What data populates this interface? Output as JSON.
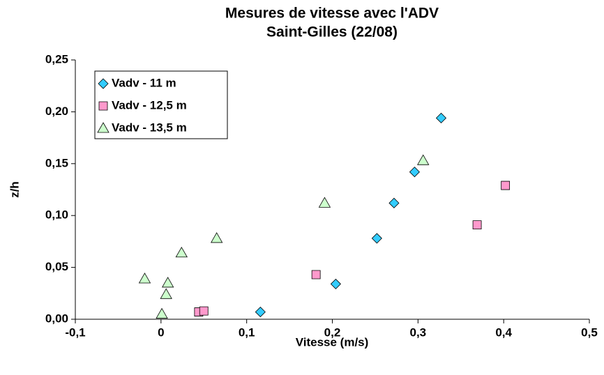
{
  "chart_data": {
    "type": "scatter",
    "title": "Mesures de vitesse avec l'ADV",
    "subtitle": "Saint-Gilles (22/08)",
    "x_label": "Vitesse (m/s)",
    "y_label": "z/h",
    "xlim": [
      -0.1,
      0.5
    ],
    "ylim": [
      0,
      0.25
    ],
    "xticks": [
      {
        "value": -0.1,
        "label": "-0,1"
      },
      0,
      {
        "value": 0.1,
        "label": "0,1"
      },
      {
        "value": 0.2,
        "label": "0,2"
      },
      {
        "value": 0.3,
        "label": "0,3"
      },
      {
        "value": 0.4,
        "label": "0,4"
      },
      {
        "value": 0.5,
        "label": "0,5"
      }
    ],
    "yticks": [
      {
        "value": 0,
        "label": "0,00"
      },
      {
        "value": 0.05,
        "label": "0,05"
      },
      {
        "value": 0.1,
        "label": "0,10"
      },
      {
        "value": 0.15,
        "label": "0,15"
      },
      {
        "value": 0.2,
        "label": "0,20"
      },
      {
        "value": 0.25,
        "label": "0,25"
      }
    ],
    "legend": "top-left",
    "series": [
      {
        "name": "Vadv - 11 m",
        "color": "#33ccff",
        "marker": "diamond",
        "x": [
          0.116,
          0.204,
          0.252,
          0.272,
          0.296,
          0.327
        ],
        "values": [
          0.007,
          0.034,
          0.078,
          0.112,
          0.142,
          0.194
        ]
      },
      {
        "name": "Vadv - 12,5 m",
        "color": "#ff99cc",
        "marker": "square",
        "x": [
          0.044,
          0.05,
          0.181,
          0.369,
          0.402
        ],
        "values": [
          0.007,
          0.008,
          0.043,
          0.091,
          0.129
        ]
      },
      {
        "name": "Vadv - 13,5 m",
        "color": "#ccffcc",
        "marker": "triangle",
        "x": [
          0.001,
          0.006,
          0.008,
          -0.019,
          0.024,
          0.065,
          0.191,
          0.306
        ],
        "values": [
          0.005,
          0.024,
          0.035,
          0.039,
          0.064,
          0.078,
          0.112,
          0.153
        ]
      }
    ]
  }
}
